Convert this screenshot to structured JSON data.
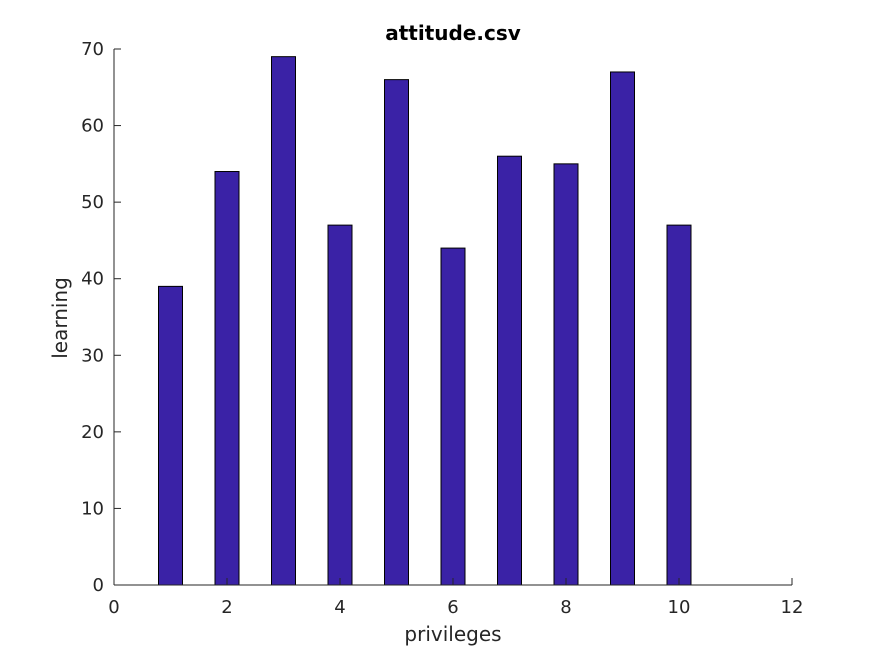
{
  "chart_data": {
    "type": "bar",
    "title": "attitude.csv",
    "xlabel": "privileges",
    "ylabel": "learning",
    "x": [
      1,
      2,
      3,
      4,
      5,
      6,
      7,
      8,
      9,
      10
    ],
    "values": [
      39,
      54,
      69,
      47,
      66,
      44,
      56,
      55,
      67,
      47
    ],
    "xlim": [
      0,
      12
    ],
    "ylim": [
      0,
      70
    ],
    "xticks": [
      0,
      2,
      4,
      6,
      8,
      10,
      12
    ],
    "yticks": [
      0,
      10,
      20,
      30,
      40,
      50,
      60,
      70
    ],
    "bar_color": "#3a22a6",
    "grid": false,
    "legend": "none"
  }
}
